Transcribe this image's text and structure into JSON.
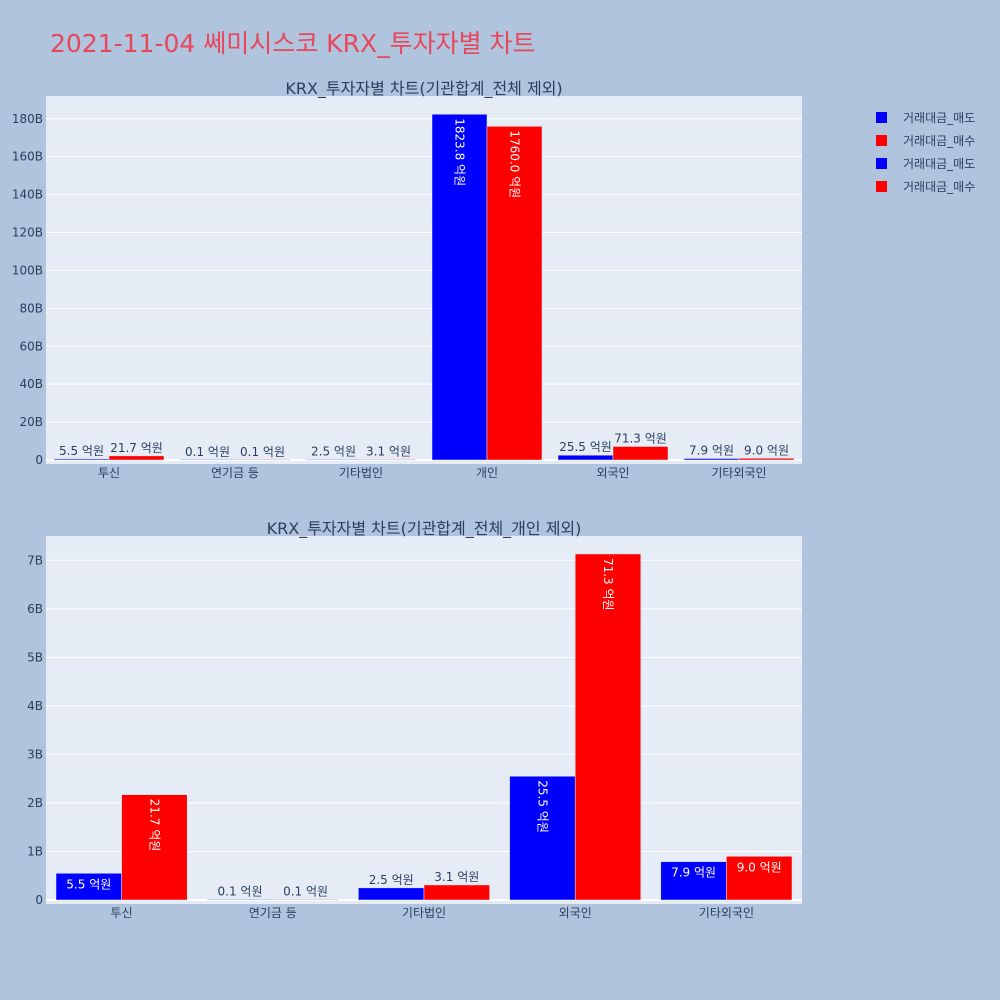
{
  "title": "2021-11-04 쎄미시스코 KRX_투자자별 차트",
  "colors": {
    "sell": "#0000ff",
    "buy": "#ff0000",
    "plot_bg": "#e5ecf6",
    "page_bg": "#b0c4de"
  },
  "legend": [
    {
      "label": "거래대금_매도",
      "color": "#0000ff"
    },
    {
      "label": "거래대금_매수",
      "color": "#ff0000"
    },
    {
      "label": "거래대금_매도",
      "color": "#0000ff"
    },
    {
      "label": "거래대금_매수",
      "color": "#ff0000"
    }
  ],
  "chart_data": [
    {
      "type": "bar",
      "title": "KRX_투자자별 차트(기관합계_전체 제외)",
      "categories": [
        "투신",
        "연기금 등",
        "기타법인",
        "개인",
        "외국인",
        "기타외국인"
      ],
      "series": [
        {
          "name": "거래대금_매도",
          "values": [
            0.55,
            0.01,
            0.25,
            182.38,
            2.55,
            0.79
          ],
          "labels": [
            "5.5 억원",
            "0.1 억원",
            "2.5 억원",
            "1823.8 억원",
            "25.5 억원",
            "7.9 억원"
          ]
        },
        {
          "name": "거래대금_매수",
          "values": [
            2.17,
            0.01,
            0.31,
            176.0,
            7.13,
            0.9
          ],
          "labels": [
            "21.7 억원",
            "0.1 억원",
            "3.1 억원",
            "1760.0 억원",
            "71.3 억원",
            "9.0 억원"
          ]
        }
      ],
      "y_ticks": [
        "0",
        "20B",
        "40B",
        "60B",
        "80B",
        "100B",
        "120B",
        "140B",
        "160B",
        "180B"
      ],
      "y_tick_values": [
        0,
        20,
        40,
        60,
        80,
        100,
        120,
        140,
        160,
        180
      ],
      "ylim": [
        0,
        192
      ],
      "grid": true
    },
    {
      "type": "bar",
      "title": "KRX_투자자별 차트(기관합계_전체_개인 제외)",
      "categories": [
        "투신",
        "연기금 등",
        "기타법인",
        "외국인",
        "기타외국인"
      ],
      "series": [
        {
          "name": "거래대금_매도",
          "values": [
            0.55,
            0.01,
            0.25,
            2.55,
            0.79
          ],
          "labels": [
            "5.5 억원",
            "0.1 억원",
            "2.5 억원",
            "25.5 억원",
            "7.9 억원"
          ]
        },
        {
          "name": "거래대금_매수",
          "values": [
            2.17,
            0.01,
            0.31,
            7.13,
            0.9
          ],
          "labels": [
            "21.7 억원",
            "0.1 억원",
            "3.1 억원",
            "71.3 억원",
            "9.0 억원"
          ]
        }
      ],
      "y_ticks": [
        "0",
        "1B",
        "2B",
        "3B",
        "4B",
        "5B",
        "6B",
        "7B"
      ],
      "y_tick_values": [
        0,
        1,
        2,
        3,
        4,
        5,
        6,
        7
      ],
      "ylim": [
        0,
        7.5
      ],
      "grid": true
    }
  ]
}
